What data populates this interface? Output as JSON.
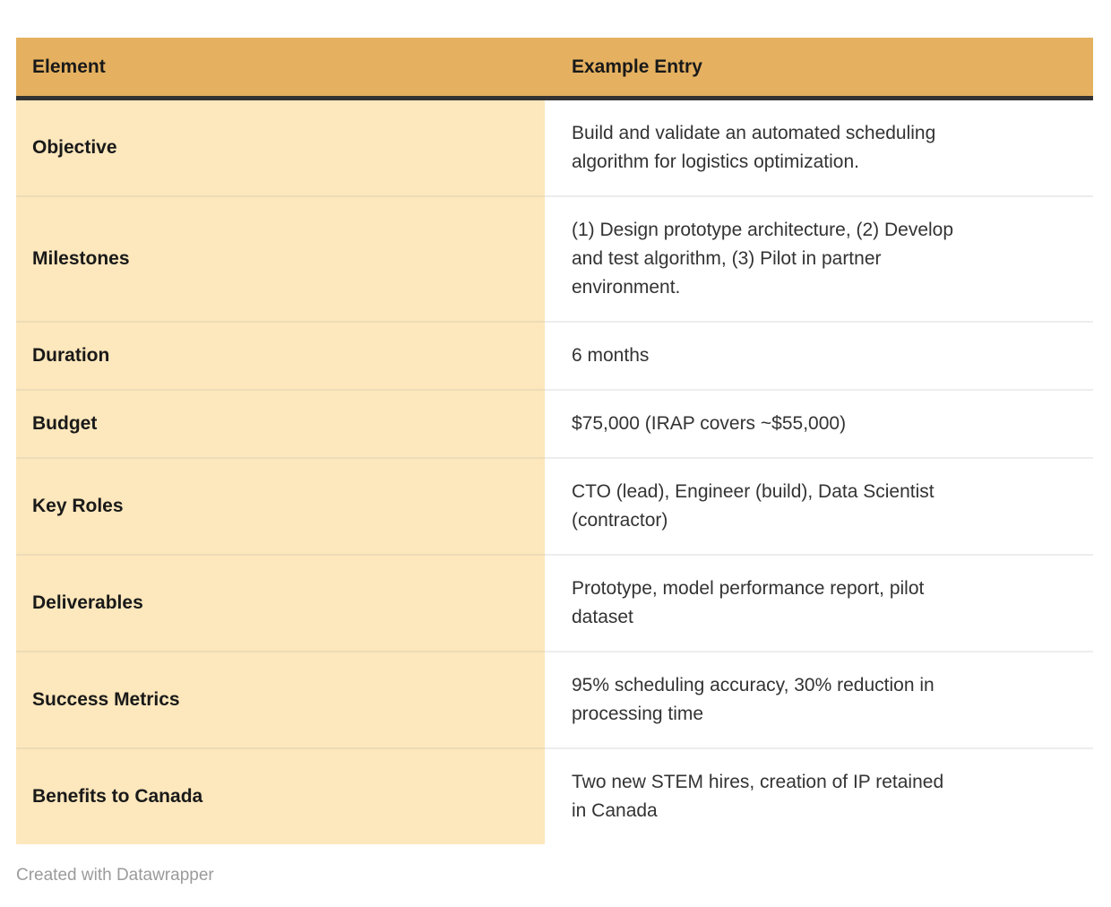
{
  "chart_data": {
    "type": "table",
    "columns": [
      "Element",
      "Example Entry"
    ],
    "rows": [
      [
        "Objective",
        "Build and validate an automated scheduling\nalgorithm for logistics optimization."
      ],
      [
        "Milestones",
        "(1) Design prototype architecture, (2) Develop\nand test algorithm, (3) Pilot in partner\nenvironment."
      ],
      [
        "Duration",
        "6 months"
      ],
      [
        "Budget",
        "$75,000 (IRAP covers ~$55,000)"
      ],
      [
        "Key Roles",
        "CTO (lead), Engineer (build), Data Scientist\n(contractor)"
      ],
      [
        "Deliverables",
        "Prototype, model performance report, pilot\ndataset"
      ],
      [
        "Success Metrics",
        "95% scheduling accuracy, 30% reduction in\nprocessing time"
      ],
      [
        "Benefits to Canada",
        "Two new STEM hires, creation of IP retained\nin Canada"
      ]
    ]
  },
  "footer": {
    "prefix": "Created with ",
    "link_label": "Datawrapper"
  },
  "colors": {
    "header_bg": "#e5b160",
    "header_rule": "#333333",
    "label_col_bg": "#fde7bc",
    "divider_tan": "#ecdcb8",
    "divider_gray": "#ededed",
    "heading_text": "#191919",
    "body_text": "#333333",
    "footer_text": "#9b9b9b",
    "page_bg": "#ffffff"
  }
}
